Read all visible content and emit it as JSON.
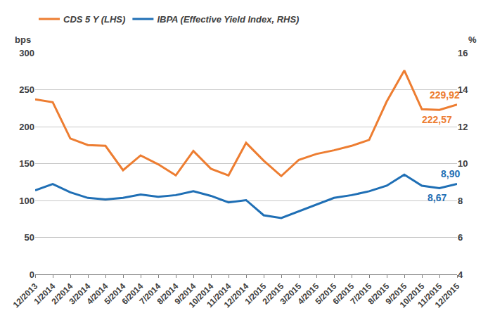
{
  "chart_data": {
    "type": "line",
    "y_label": "bps",
    "y2_label": "%",
    "categories": [
      "12/2013",
      "1/2014",
      "2/2014",
      "3/2014",
      "4/2014",
      "5/2014",
      "6/2014",
      "7/2014",
      "8/2014",
      "9/2014",
      "10/2014",
      "11/2014",
      "12/2014",
      "1/2015",
      "2/2015",
      "3/2015",
      "4/2015",
      "5/2015",
      "6/2015",
      "7/2015",
      "8/2015",
      "9/2015",
      "10/2015",
      "11/2015",
      "12/2015"
    ],
    "series": [
      {
        "name": "CDS 5 Y (LHS)",
        "color": "#ED7D31",
        "axis": "y",
        "values": [
          237,
          233,
          184,
          175,
          174,
          141,
          161,
          149,
          134,
          167,
          143,
          134,
          178,
          154,
          133,
          155,
          163,
          168,
          174,
          182,
          234,
          276,
          223.5,
          222.57,
          229.92
        ],
        "value_labels": [
          null,
          null,
          null,
          null,
          null,
          null,
          null,
          null,
          null,
          null,
          null,
          null,
          null,
          null,
          null,
          null,
          null,
          null,
          null,
          null,
          null,
          null,
          null,
          "222,57",
          "229,92"
        ]
      },
      {
        "name": "IBPA (Effective Yield Index, RHS)",
        "color": "#1F6FB5",
        "axis": "y2",
        "values": [
          8.55,
          8.89,
          8.44,
          8.14,
          8.06,
          8.14,
          8.32,
          8.2,
          8.29,
          8.5,
          8.25,
          7.9,
          8.02,
          7.2,
          7.05,
          7.42,
          7.76,
          8.14,
          8.29,
          8.5,
          8.8,
          9.4,
          8.8,
          8.67,
          8.9
        ],
        "value_labels": [
          null,
          null,
          null,
          null,
          null,
          null,
          null,
          null,
          null,
          null,
          null,
          null,
          null,
          null,
          null,
          null,
          null,
          null,
          null,
          null,
          null,
          null,
          null,
          "8,67",
          "8,90"
        ]
      }
    ],
    "ylim": [
      0,
      300
    ],
    "yticks": [
      0,
      50,
      100,
      150,
      200,
      250,
      300
    ],
    "y2lim": [
      4,
      16
    ],
    "y2ticks": [
      4,
      6,
      8,
      10,
      12,
      14,
      16
    ],
    "grid": true,
    "legend": "top-left"
  }
}
